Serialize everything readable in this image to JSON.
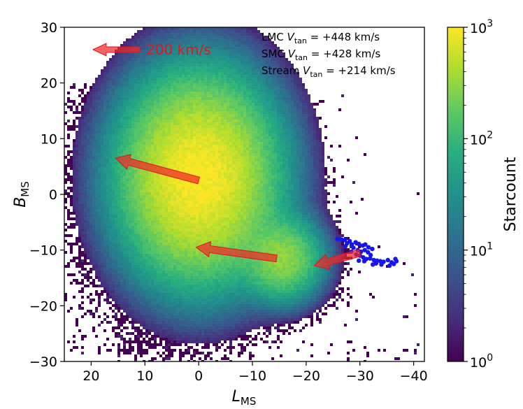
{
  "chart_data": {
    "type": "heatmap",
    "title": "",
    "xlabel": "L",
    "xlabel_sub": "MS",
    "ylabel": "B",
    "ylabel_sub": "MS",
    "xlim": [
      25,
      -42
    ],
    "ylim": [
      -30,
      30
    ],
    "x_ticks": [
      20,
      10,
      0,
      -10,
      -20,
      -30,
      -40
    ],
    "x_tick_labels": [
      "20",
      "10",
      "0",
      "−10",
      "−20",
      "−30",
      "−40"
    ],
    "y_ticks": [
      30,
      20,
      10,
      0,
      -10,
      -20,
      -30
    ],
    "y_tick_labels": [
      "30",
      "20",
      "10",
      "0",
      "−10",
      "−20",
      "−30"
    ],
    "colorbar": {
      "label": "Starcount",
      "scale": "log",
      "range": [
        1,
        1000
      ],
      "colormap": "viridis",
      "ticks": [
        {
          "value": 1,
          "base": "10",
          "exp": "0"
        },
        {
          "value": 10,
          "base": "10",
          "exp": "1"
        },
        {
          "value": 100,
          "base": "10",
          "exp": "2"
        },
        {
          "value": 1000,
          "base": "10",
          "exp": "3"
        }
      ]
    },
    "clouds": [
      {
        "name": "LMC",
        "center": [
          0,
          3
        ],
        "peak_count": 1000
      },
      {
        "name": "SMC",
        "center": [
          -15.5,
          -11.5
        ],
        "peak_count": 300
      }
    ],
    "velocity_arrows": [
      {
        "name": "LMC",
        "from": [
          0,
          2.5
        ],
        "to": [
          15.5,
          6.5
        ]
      },
      {
        "name": "SMC",
        "from": [
          -14.5,
          -11.5
        ],
        "to": [
          0.5,
          -9.5
        ]
      },
      {
        "name": "Stream",
        "from": [
          -30,
          -10.5
        ],
        "to": [
          -21.5,
          -12.8
        ]
      }
    ],
    "reference_arrow": {
      "label": "200 km/s"
    },
    "stream_points": [
      [
        -25.8,
        -8.0
      ],
      [
        -26.6,
        -8.1
      ],
      [
        -27.2,
        -8.2
      ],
      [
        -28.1,
        -8.4
      ],
      [
        -27.6,
        -8.8
      ],
      [
        -28.5,
        -9.0
      ],
      [
        -29.2,
        -8.6
      ],
      [
        -29.8,
        -8.9
      ],
      [
        -30.5,
        -9.2
      ],
      [
        -31.0,
        -9.0
      ],
      [
        -31.6,
        -9.5
      ],
      [
        -32.3,
        -9.8
      ],
      [
        -28.8,
        -9.6
      ],
      [
        -29.6,
        -10.0
      ],
      [
        -30.2,
        -10.3
      ],
      [
        -30.9,
        -10.0
      ],
      [
        -31.5,
        -10.4
      ],
      [
        -32.0,
        -10.9
      ],
      [
        -29.3,
        -10.8
      ],
      [
        -30.0,
        -11.0
      ],
      [
        -30.6,
        -11.3
      ],
      [
        -31.2,
        -11.6
      ],
      [
        -31.9,
        -11.5
      ],
      [
        -32.6,
        -11.8
      ],
      [
        -33.2,
        -11.9
      ],
      [
        -33.8,
        -12.0
      ],
      [
        -34.4,
        -12.1
      ],
      [
        -35.2,
        -11.8
      ],
      [
        -35.9,
        -12.2
      ],
      [
        -36.3,
        -12.5
      ],
      [
        -36.8,
        -12.0
      ],
      [
        -34.0,
        -12.6
      ],
      [
        -33.0,
        -12.4
      ],
      [
        -29.8,
        -11.9
      ],
      [
        -30.8,
        -12.0
      ],
      [
        -32.4,
        -12.6
      ],
      [
        -35.5,
        -12.8
      ],
      [
        -36.6,
        -11.6
      ],
      [
        -28.4,
        -10.3
      ],
      [
        -27.3,
        -9.3
      ]
    ],
    "legend": [
      {
        "name": "LMC",
        "prefix": "LMC",
        "symbol": "V",
        "sub": "tan",
        "value": "= +448 km/s"
      },
      {
        "name": "SMC",
        "prefix": "SMC",
        "symbol": "V",
        "sub": "tan",
        "value": "= +428 km/s"
      },
      {
        "name": "Stream",
        "prefix": "Stream",
        "symbol": "V",
        "sub": "tan",
        "value": "= +214 km/s"
      }
    ],
    "colors": {
      "arrow": "#f02828",
      "stream_points": "#1515f0",
      "reference_text": "#e8141c"
    }
  }
}
